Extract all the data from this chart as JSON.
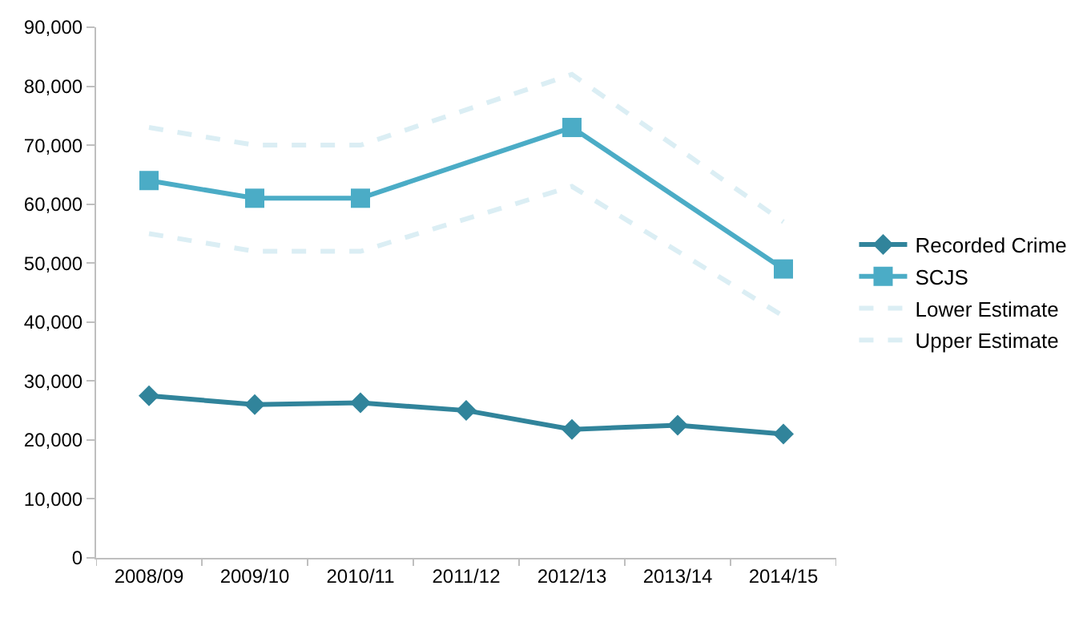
{
  "chart_data": {
    "type": "line",
    "categories": [
      "2008/09",
      "2009/10",
      "2010/11",
      "2011/12",
      "2012/13",
      "2013/14",
      "2014/15"
    ],
    "series": [
      {
        "name": "Recorded Crime",
        "color": "#31849b",
        "marker": "diamond",
        "line_style": "solid",
        "values": [
          27500,
          26000,
          26300,
          25000,
          21800,
          22500,
          21000
        ]
      },
      {
        "name": "SCJS",
        "color": "#4bacc6",
        "marker": "square",
        "line_style": "solid",
        "values": [
          64000,
          61000,
          61000,
          null,
          73000,
          null,
          49000
        ]
      },
      {
        "name": "Lower Estimate",
        "color": "#dbeef4",
        "marker": "none",
        "line_style": "dashed",
        "values": [
          55000,
          52000,
          52000,
          null,
          63000,
          null,
          41000
        ]
      },
      {
        "name": "Upper Estimate",
        "color": "#dbeef4",
        "marker": "none",
        "line_style": "dashed",
        "values": [
          73000,
          70000,
          70000,
          null,
          82000,
          null,
          57000
        ]
      }
    ],
    "ylim": [
      0,
      90000
    ],
    "yticks": [
      {
        "value": 0,
        "label": "0"
      },
      {
        "value": 10000,
        "label": "10,000"
      },
      {
        "value": 20000,
        "label": "20,000"
      },
      {
        "value": 30000,
        "label": "30,000"
      },
      {
        "value": 40000,
        "label": "40,000"
      },
      {
        "value": 50000,
        "label": "50,000"
      },
      {
        "value": 60000,
        "label": "60,000"
      },
      {
        "value": 70000,
        "label": "70,000"
      },
      {
        "value": 80000,
        "label": "80,000"
      },
      {
        "value": 90000,
        "label": "90,000"
      }
    ],
    "grid": false,
    "legend": "right"
  }
}
